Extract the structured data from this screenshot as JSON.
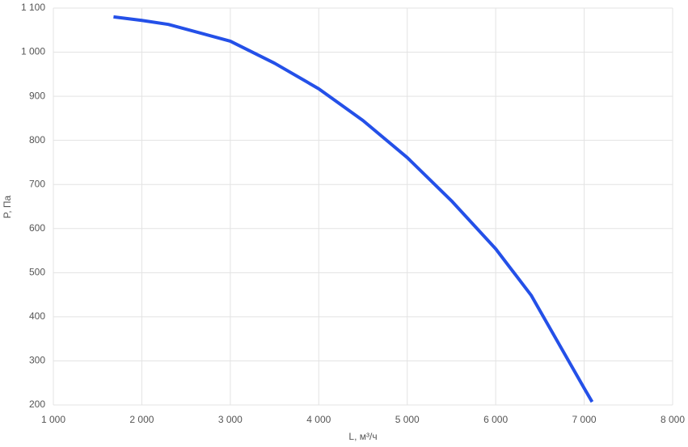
{
  "chart_data": {
    "type": "line",
    "x_label": "L, м³/ч",
    "y_label": "P, Па",
    "x": [
      1680,
      2000,
      2300,
      3000,
      3500,
      4000,
      4500,
      5000,
      5500,
      6000,
      6400,
      7000,
      7090
    ],
    "series": [
      {
        "name": "P",
        "color": "#2450e8",
        "values": [
          1080,
          1072,
          1063,
          1025,
          975,
          917,
          845,
          761,
          663,
          554,
          449,
          238,
          207
        ]
      }
    ],
    "xlim": [
      1000,
      8000
    ],
    "ylim": [
      200,
      1100
    ],
    "xticks": [
      {
        "value": 1000,
        "label": "1 000"
      },
      {
        "value": 2000,
        "label": "2 000"
      },
      {
        "value": 3000,
        "label": "3 000"
      },
      {
        "value": 4000,
        "label": "4 000"
      },
      {
        "value": 5000,
        "label": "5 000"
      },
      {
        "value": 6000,
        "label": "6 000"
      },
      {
        "value": 7000,
        "label": "7 000"
      },
      {
        "value": 8000,
        "label": "8 000"
      }
    ],
    "yticks": [
      200,
      300,
      400,
      500,
      600,
      700,
      800,
      900,
      {
        "value": 1000,
        "label": "1 000"
      },
      {
        "value": 1100,
        "label": "1 100"
      }
    ],
    "grid": true
  }
}
